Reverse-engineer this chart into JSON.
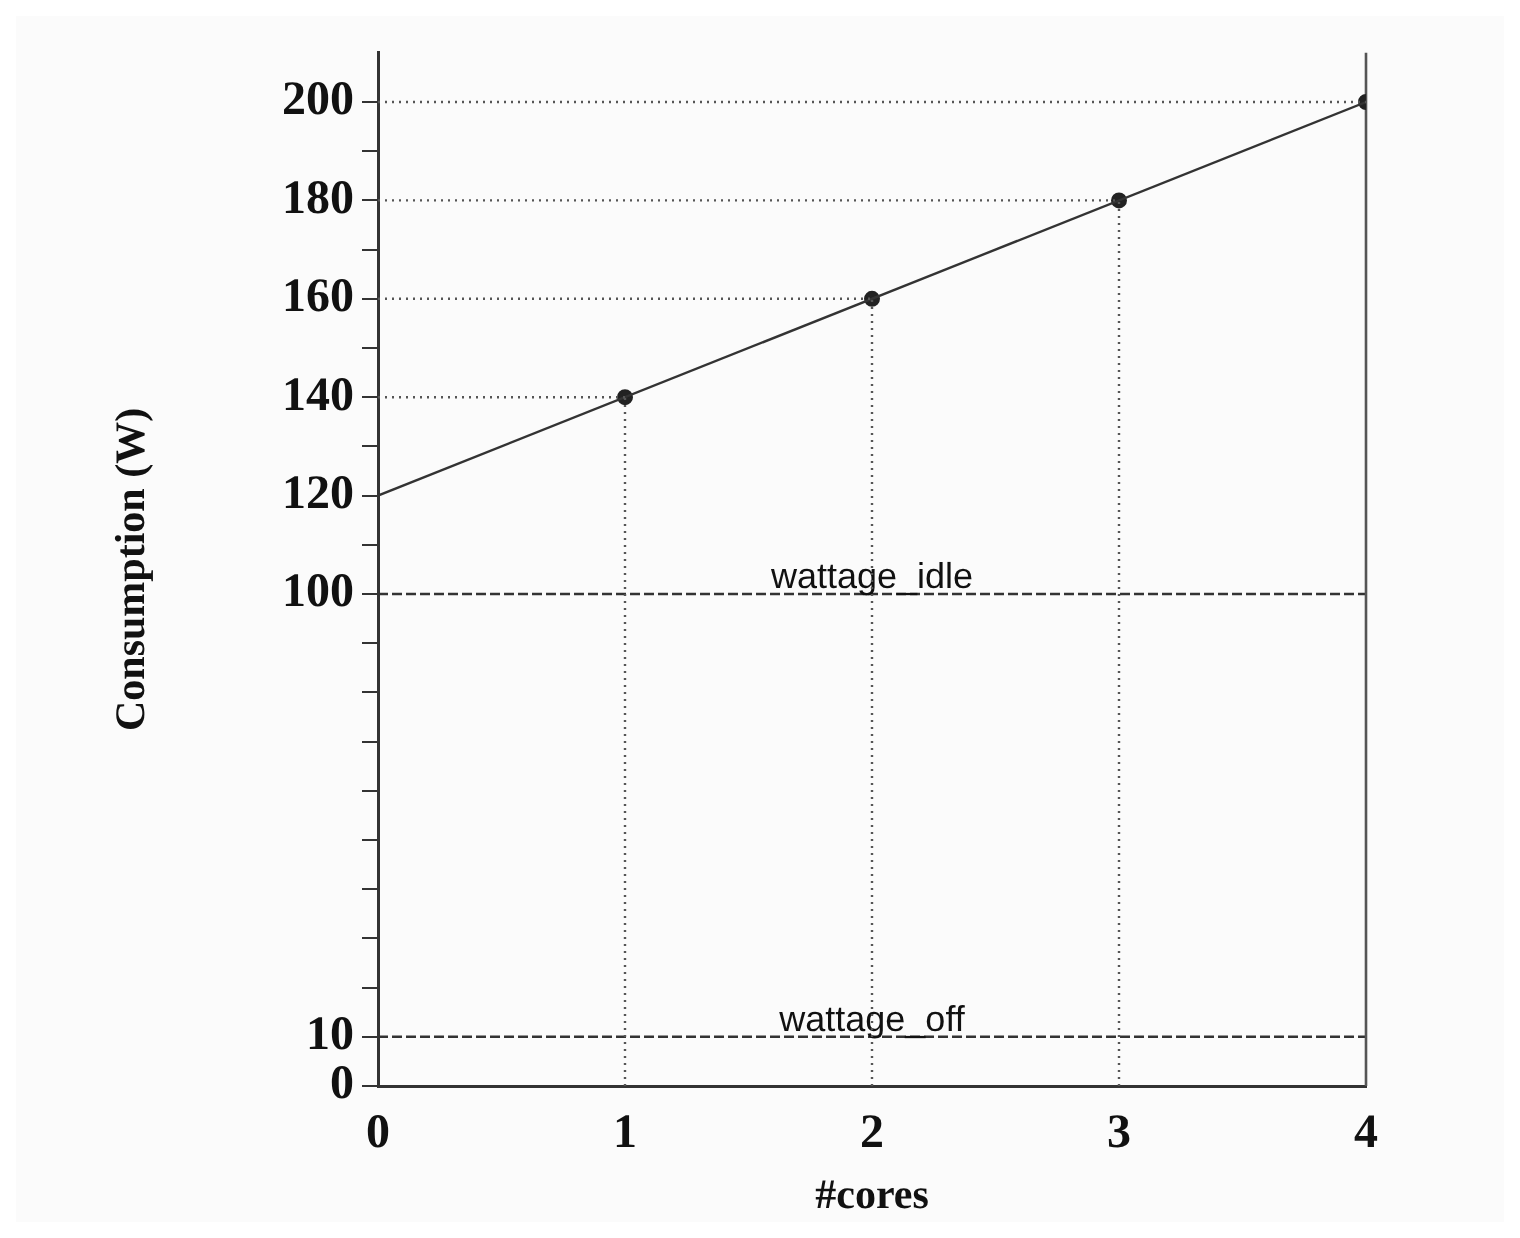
{
  "chart_data": {
    "type": "line",
    "xlabel": "#cores",
    "ylabel": "Consumption (W)",
    "xlim": [
      0,
      4
    ],
    "xticks": [
      0,
      1,
      2,
      3,
      4
    ],
    "ylim": [
      0,
      210
    ],
    "yticks": [
      0,
      10,
      {
        "value": 20,
        "label": null
      },
      {
        "value": 30,
        "label": null
      },
      {
        "value": 40,
        "label": null
      },
      {
        "value": 50,
        "label": null
      },
      {
        "value": 60,
        "label": null
      },
      {
        "value": 70,
        "label": null
      },
      {
        "value": 80,
        "label": null
      },
      {
        "value": 90,
        "label": null
      },
      100,
      {
        "value": 110,
        "label": null
      },
      120,
      {
        "value": 130,
        "label": null
      },
      140,
      {
        "value": 150,
        "label": null
      },
      160,
      {
        "value": 170,
        "label": null
      },
      180,
      {
        "value": 190,
        "label": null
      },
      200
    ],
    "series": [
      {
        "color": "#555555",
        "x": [
          0,
          1
        ],
        "values": [
          140,
          140
        ],
        "marker": "none",
        "line_style": "dotted"
      },
      {
        "color": "#555555",
        "x": [
          0,
          2
        ],
        "values": [
          160,
          160
        ],
        "marker": "none",
        "line_style": "dotted"
      },
      {
        "color": "#555555",
        "x": [
          0,
          3
        ],
        "values": [
          180,
          180
        ],
        "marker": "none",
        "line_style": "dotted"
      },
      {
        "color": "#555555",
        "x": [
          0,
          4
        ],
        "values": [
          200,
          200
        ],
        "marker": "none",
        "line_style": "dotted"
      },
      {
        "color": "#555555",
        "x": [
          1,
          1
        ],
        "values": [
          0,
          140
        ],
        "marker": "none",
        "line_style": "dotted"
      },
      {
        "color": "#555555",
        "x": [
          2,
          2
        ],
        "values": [
          0,
          160
        ],
        "marker": "none",
        "line_style": "dotted"
      },
      {
        "color": "#555555",
        "x": [
          3,
          3
        ],
        "values": [
          0,
          180
        ],
        "marker": "none",
        "line_style": "dotted"
      },
      {
        "color": "#333333",
        "x": [
          0,
          4
        ],
        "values": [
          120,
          200
        ],
        "marker": "none"
      },
      {
        "type": "scatter",
        "color": "#222222",
        "x": [
          1,
          2,
          3,
          4
        ],
        "values": [
          140,
          160,
          180,
          200
        ],
        "marker": "circle"
      }
    ],
    "ref_lines": [
      {
        "axis": "y",
        "value": 100,
        "label": "wattage_idle",
        "line_style": "dashed",
        "color": "#333333"
      },
      {
        "axis": "y",
        "value": 10,
        "label": "wattage_off",
        "line_style": "dashed",
        "color": "#333333"
      },
      {
        "axis": "x",
        "value": 4,
        "line_style": "solid",
        "color": "#555555"
      }
    ]
  }
}
